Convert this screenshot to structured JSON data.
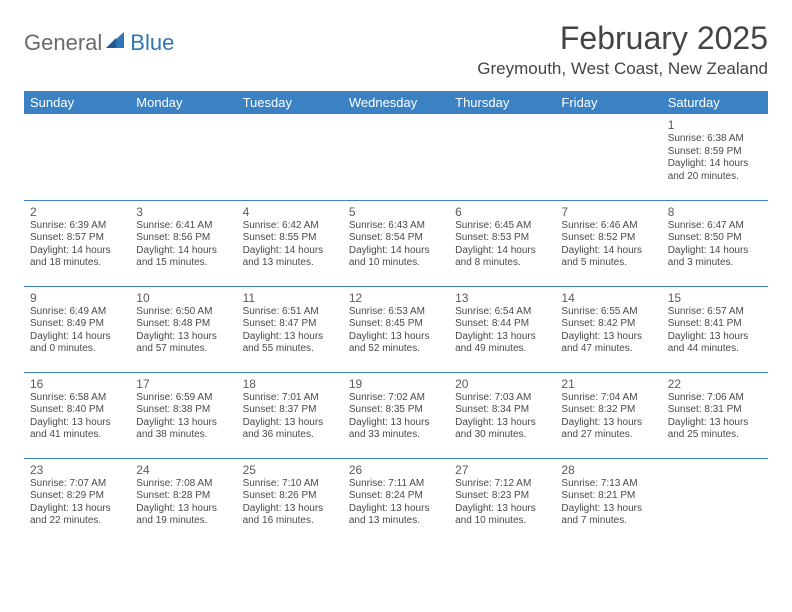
{
  "brand": {
    "general": "General",
    "blue": "Blue"
  },
  "title": "February 2025",
  "location": "Greymouth, West Coast, New Zealand",
  "colors": {
    "header_bg": "#3a82c4",
    "header_text": "#ffffff",
    "border": "#3a82c4",
    "text": "#4a4a4a",
    "brand_gray": "#6a6a6a",
    "brand_blue": "#2e75b6"
  },
  "typography": {
    "title_fontsize": 32,
    "location_fontsize": 17,
    "dayhead_fontsize": 13,
    "daynum_fontsize": 12,
    "info_fontsize": 10
  },
  "day_headers": [
    "Sunday",
    "Monday",
    "Tuesday",
    "Wednesday",
    "Thursday",
    "Friday",
    "Saturday"
  ],
  "weeks": [
    [
      null,
      null,
      null,
      null,
      null,
      null,
      {
        "n": "1",
        "sr": "Sunrise: 6:38 AM",
        "ss": "Sunset: 8:59 PM",
        "dl1": "Daylight: 14 hours",
        "dl2": "and 20 minutes."
      }
    ],
    [
      {
        "n": "2",
        "sr": "Sunrise: 6:39 AM",
        "ss": "Sunset: 8:57 PM",
        "dl1": "Daylight: 14 hours",
        "dl2": "and 18 minutes."
      },
      {
        "n": "3",
        "sr": "Sunrise: 6:41 AM",
        "ss": "Sunset: 8:56 PM",
        "dl1": "Daylight: 14 hours",
        "dl2": "and 15 minutes."
      },
      {
        "n": "4",
        "sr": "Sunrise: 6:42 AM",
        "ss": "Sunset: 8:55 PM",
        "dl1": "Daylight: 14 hours",
        "dl2": "and 13 minutes."
      },
      {
        "n": "5",
        "sr": "Sunrise: 6:43 AM",
        "ss": "Sunset: 8:54 PM",
        "dl1": "Daylight: 14 hours",
        "dl2": "and 10 minutes."
      },
      {
        "n": "6",
        "sr": "Sunrise: 6:45 AM",
        "ss": "Sunset: 8:53 PM",
        "dl1": "Daylight: 14 hours",
        "dl2": "and 8 minutes."
      },
      {
        "n": "7",
        "sr": "Sunrise: 6:46 AM",
        "ss": "Sunset: 8:52 PM",
        "dl1": "Daylight: 14 hours",
        "dl2": "and 5 minutes."
      },
      {
        "n": "8",
        "sr": "Sunrise: 6:47 AM",
        "ss": "Sunset: 8:50 PM",
        "dl1": "Daylight: 14 hours",
        "dl2": "and 3 minutes."
      }
    ],
    [
      {
        "n": "9",
        "sr": "Sunrise: 6:49 AM",
        "ss": "Sunset: 8:49 PM",
        "dl1": "Daylight: 14 hours",
        "dl2": "and 0 minutes."
      },
      {
        "n": "10",
        "sr": "Sunrise: 6:50 AM",
        "ss": "Sunset: 8:48 PM",
        "dl1": "Daylight: 13 hours",
        "dl2": "and 57 minutes."
      },
      {
        "n": "11",
        "sr": "Sunrise: 6:51 AM",
        "ss": "Sunset: 8:47 PM",
        "dl1": "Daylight: 13 hours",
        "dl2": "and 55 minutes."
      },
      {
        "n": "12",
        "sr": "Sunrise: 6:53 AM",
        "ss": "Sunset: 8:45 PM",
        "dl1": "Daylight: 13 hours",
        "dl2": "and 52 minutes."
      },
      {
        "n": "13",
        "sr": "Sunrise: 6:54 AM",
        "ss": "Sunset: 8:44 PM",
        "dl1": "Daylight: 13 hours",
        "dl2": "and 49 minutes."
      },
      {
        "n": "14",
        "sr": "Sunrise: 6:55 AM",
        "ss": "Sunset: 8:42 PM",
        "dl1": "Daylight: 13 hours",
        "dl2": "and 47 minutes."
      },
      {
        "n": "15",
        "sr": "Sunrise: 6:57 AM",
        "ss": "Sunset: 8:41 PM",
        "dl1": "Daylight: 13 hours",
        "dl2": "and 44 minutes."
      }
    ],
    [
      {
        "n": "16",
        "sr": "Sunrise: 6:58 AM",
        "ss": "Sunset: 8:40 PM",
        "dl1": "Daylight: 13 hours",
        "dl2": "and 41 minutes."
      },
      {
        "n": "17",
        "sr": "Sunrise: 6:59 AM",
        "ss": "Sunset: 8:38 PM",
        "dl1": "Daylight: 13 hours",
        "dl2": "and 38 minutes."
      },
      {
        "n": "18",
        "sr": "Sunrise: 7:01 AM",
        "ss": "Sunset: 8:37 PM",
        "dl1": "Daylight: 13 hours",
        "dl2": "and 36 minutes."
      },
      {
        "n": "19",
        "sr": "Sunrise: 7:02 AM",
        "ss": "Sunset: 8:35 PM",
        "dl1": "Daylight: 13 hours",
        "dl2": "and 33 minutes."
      },
      {
        "n": "20",
        "sr": "Sunrise: 7:03 AM",
        "ss": "Sunset: 8:34 PM",
        "dl1": "Daylight: 13 hours",
        "dl2": "and 30 minutes."
      },
      {
        "n": "21",
        "sr": "Sunrise: 7:04 AM",
        "ss": "Sunset: 8:32 PM",
        "dl1": "Daylight: 13 hours",
        "dl2": "and 27 minutes."
      },
      {
        "n": "22",
        "sr": "Sunrise: 7:06 AM",
        "ss": "Sunset: 8:31 PM",
        "dl1": "Daylight: 13 hours",
        "dl2": "and 25 minutes."
      }
    ],
    [
      {
        "n": "23",
        "sr": "Sunrise: 7:07 AM",
        "ss": "Sunset: 8:29 PM",
        "dl1": "Daylight: 13 hours",
        "dl2": "and 22 minutes."
      },
      {
        "n": "24",
        "sr": "Sunrise: 7:08 AM",
        "ss": "Sunset: 8:28 PM",
        "dl1": "Daylight: 13 hours",
        "dl2": "and 19 minutes."
      },
      {
        "n": "25",
        "sr": "Sunrise: 7:10 AM",
        "ss": "Sunset: 8:26 PM",
        "dl1": "Daylight: 13 hours",
        "dl2": "and 16 minutes."
      },
      {
        "n": "26",
        "sr": "Sunrise: 7:11 AM",
        "ss": "Sunset: 8:24 PM",
        "dl1": "Daylight: 13 hours",
        "dl2": "and 13 minutes."
      },
      {
        "n": "27",
        "sr": "Sunrise: 7:12 AM",
        "ss": "Sunset: 8:23 PM",
        "dl1": "Daylight: 13 hours",
        "dl2": "and 10 minutes."
      },
      {
        "n": "28",
        "sr": "Sunrise: 7:13 AM",
        "ss": "Sunset: 8:21 PM",
        "dl1": "Daylight: 13 hours",
        "dl2": "and 7 minutes."
      },
      null
    ]
  ]
}
